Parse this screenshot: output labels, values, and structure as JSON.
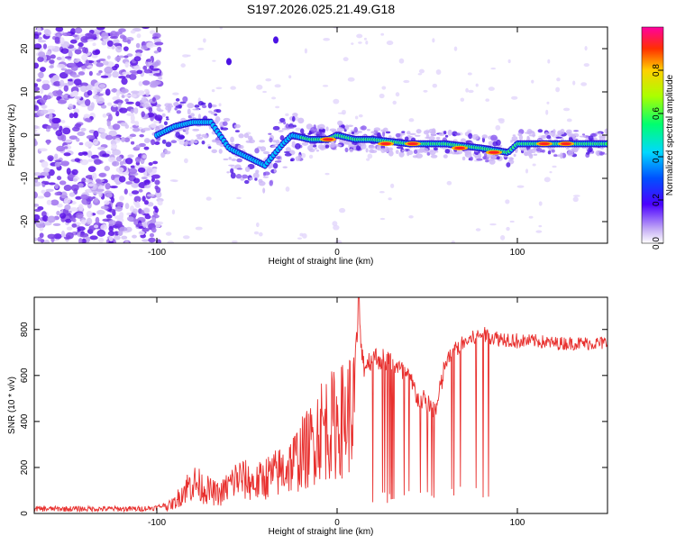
{
  "chart_data": [
    {
      "type": "heatmap",
      "title": "S197.2026.025.21.49.G18",
      "xlabel": "Height of straight line (km)",
      "ylabel": "Frequency (Hz)",
      "xlim": [
        -168,
        150
      ],
      "ylim": [
        -25,
        25
      ],
      "x_ticks": [
        -100,
        0,
        100
      ],
      "y_ticks": [
        -20,
        -10,
        0,
        10,
        20
      ],
      "colorbar": {
        "label": "Normalized spectral amplitude",
        "range": [
          0,
          1
        ],
        "ticks": [
          0.0,
          0.2,
          0.4,
          0.6,
          0.8
        ]
      },
      "ridge": {
        "x": [
          -100,
          -90,
          -80,
          -70,
          -60,
          -50,
          -40,
          -30,
          -25,
          -15,
          -5,
          0,
          10,
          20,
          40,
          60,
          80,
          95,
          100,
          120,
          150
        ],
        "freq": [
          0,
          2,
          3,
          3,
          -3,
          -5,
          -7,
          -2,
          0,
          -1,
          -1,
          0,
          -1,
          -1,
          -2,
          -2,
          -3,
          -4,
          -2,
          -2,
          -2
        ]
      }
    },
    {
      "type": "line",
      "xlabel": "Height of straight line (km)",
      "ylabel": "SNR (10 * v/v)",
      "xlim": [
        -168,
        150
      ],
      "ylim": [
        0,
        940
      ],
      "x_ticks": [
        -100,
        0,
        100
      ],
      "y_ticks": [
        0,
        200,
        400,
        600,
        800
      ],
      "series": [
        {
          "name": "SNR",
          "color": "#e8302e",
          "x": [
            -168,
            -140,
            -110,
            -100,
            -95,
            -90,
            -85,
            -80,
            -75,
            -70,
            -65,
            -60,
            -55,
            -50,
            -45,
            -40,
            -35,
            -30,
            -25,
            -20,
            -15,
            -12,
            -10,
            -5,
            0,
            5,
            10,
            12,
            15,
            20,
            25,
            30,
            35,
            40,
            45,
            50,
            55,
            60,
            65,
            70,
            75,
            80,
            85,
            90,
            95,
            100,
            110,
            120,
            130,
            140,
            150
          ],
          "values": [
            20,
            20,
            20,
            25,
            40,
            70,
            150,
            200,
            170,
            140,
            120,
            180,
            230,
            210,
            190,
            230,
            250,
            280,
            320,
            380,
            430,
            500,
            550,
            560,
            580,
            620,
            700,
            820,
            640,
            680,
            670,
            660,
            620,
            590,
            500,
            480,
            450,
            650,
            710,
            740,
            760,
            780,
            770,
            760,
            760,
            750,
            750,
            740,
            740,
            740,
            740
          ],
          "max_value": 940
        }
      ]
    }
  ]
}
